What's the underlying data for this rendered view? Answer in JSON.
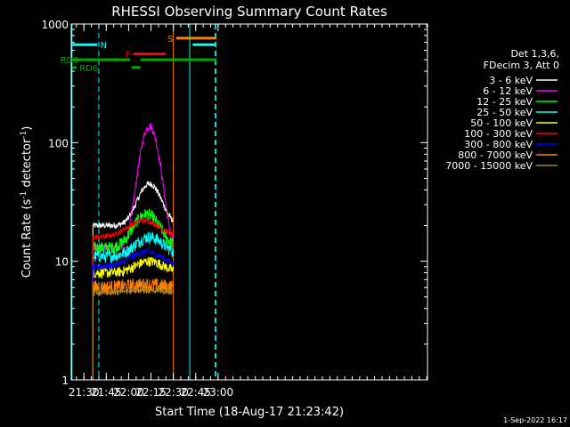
{
  "chart_data": {
    "type": "line",
    "title": "RHESSI Observing Summary Count Rates",
    "xlabel": "Start Time (18-Aug-17 21:23:42)",
    "ylabel_main": "Count Rate (s",
    "ylabel_exp1": "-1",
    "ylabel_mid": " detector",
    "ylabel_exp2": "-1",
    "ylabel_end": ")",
    "y_scale": "log",
    "ylim": [
      1,
      1000
    ],
    "y_ticks": [
      {
        "value": 1,
        "label": "1"
      },
      {
        "value": 10,
        "label": "10"
      },
      {
        "value": 100,
        "label": "100"
      },
      {
        "value": 1000,
        "label": "1000"
      }
    ],
    "xlim_minutes": [
      21.5,
      260.5
    ],
    "x_ticks": [
      {
        "minutes": 30,
        "label": "21:30"
      },
      {
        "minutes": 45,
        "label": "21:45"
      },
      {
        "minutes": 60,
        "label": "22:00"
      },
      {
        "minutes": 75,
        "label": "22:15"
      },
      {
        "minutes": 90,
        "label": "22:30"
      },
      {
        "minutes": 105,
        "label": "22:45"
      },
      {
        "minutes": 120,
        "label": "23:00"
      }
    ],
    "legend_header": [
      "Det 1,3,6,",
      "FDecim 3, Att 0"
    ],
    "legend_position": "right",
    "series": [
      {
        "name": "3 - 6 keV",
        "color": "#ffffff",
        "base": 20,
        "peak": 25,
        "peak_center": 74,
        "peak_width": 7,
        "noise": 0.06
      },
      {
        "name": "6 - 12 keV",
        "color": "#ff00ff",
        "base": 13,
        "peak": 125,
        "peak_center": 74,
        "peak_width": 5.5,
        "noise": 0.08
      },
      {
        "name": "12 - 25 keV",
        "color": "#00ff00",
        "base": 13,
        "peak": 12,
        "peak_center": 72,
        "peak_width": 8,
        "noise": 0.12
      },
      {
        "name": "25 - 50 keV",
        "color": "#00ffff",
        "base": 11,
        "peak": 5,
        "peak_center": 74,
        "peak_width": 9,
        "noise": 0.12
      },
      {
        "name": "50 - 100 keV",
        "color": "#ffff00",
        "base": 8,
        "peak": 2,
        "peak_center": 74,
        "peak_width": 9,
        "noise": 0.1
      },
      {
        "name": "100 - 300 keV",
        "color": "#ff0000",
        "base": 16,
        "peak": 6,
        "peak_center": 70,
        "peak_width": 10,
        "noise": 0.05
      },
      {
        "name": "300 - 800 keV",
        "color": "#0000ff",
        "base": 9,
        "peak": 3,
        "peak_center": 72,
        "peak_width": 10,
        "noise": 0.06
      },
      {
        "name": "800 - 7000 keV",
        "color": "#ff8000",
        "base": 6,
        "peak": 0.3,
        "peak_center": 72,
        "peak_width": 10,
        "noise": 0.15
      },
      {
        "name": "7000 - 15000 keV",
        "color": "#a08020",
        "base": 5.5,
        "peak": 0.2,
        "peak_center": 72,
        "peak_width": 10,
        "noise": 0.05
      }
    ],
    "data_window_minutes": [
      36,
      90
    ],
    "flag_bars": [
      {
        "label": "N",
        "color": "#00ffff",
        "level": 670,
        "segments": [
          [
            22,
            39
          ],
          [
            103,
            118
          ]
        ],
        "label_at": 41
      },
      {
        "label": "F",
        "color": "#ff0000",
        "level": 560,
        "segments": [
          [
            63,
            85
          ]
        ],
        "label_at": 58
      },
      {
        "label": "S",
        "color": "#ff8000",
        "level": 760,
        "segments": [
          [
            92,
            119
          ]
        ],
        "label_at": 86
      },
      {
        "label": "RD0",
        "color": "#00aa00",
        "level": 500,
        "segments": [
          [
            23,
            61
          ],
          [
            68,
            119
          ]
        ],
        "label_at": 14
      },
      {
        "label": "RD6",
        "color": "#00aa00",
        "level": 430,
        "segments": [
          [
            22,
            25
          ],
          [
            62,
            68
          ]
        ],
        "label_at": 27
      }
    ],
    "vlines": [
      {
        "minutes": 22,
        "color": "#00ffff",
        "style": "solid"
      },
      {
        "minutes": 40,
        "color": "#00ffff",
        "style": "dashed"
      },
      {
        "minutes": 90,
        "color": "#ff8000",
        "style": "solid"
      },
      {
        "minutes": 101,
        "color": "#00ffff",
        "style": "solid"
      },
      {
        "minutes": 118,
        "color": "#ff8000",
        "style": "dashed"
      },
      {
        "minutes": 118.5,
        "color": "#00ffff",
        "style": "dashed"
      }
    ]
  },
  "footer": {
    "date": "1-Sep-2022 16:17"
  }
}
